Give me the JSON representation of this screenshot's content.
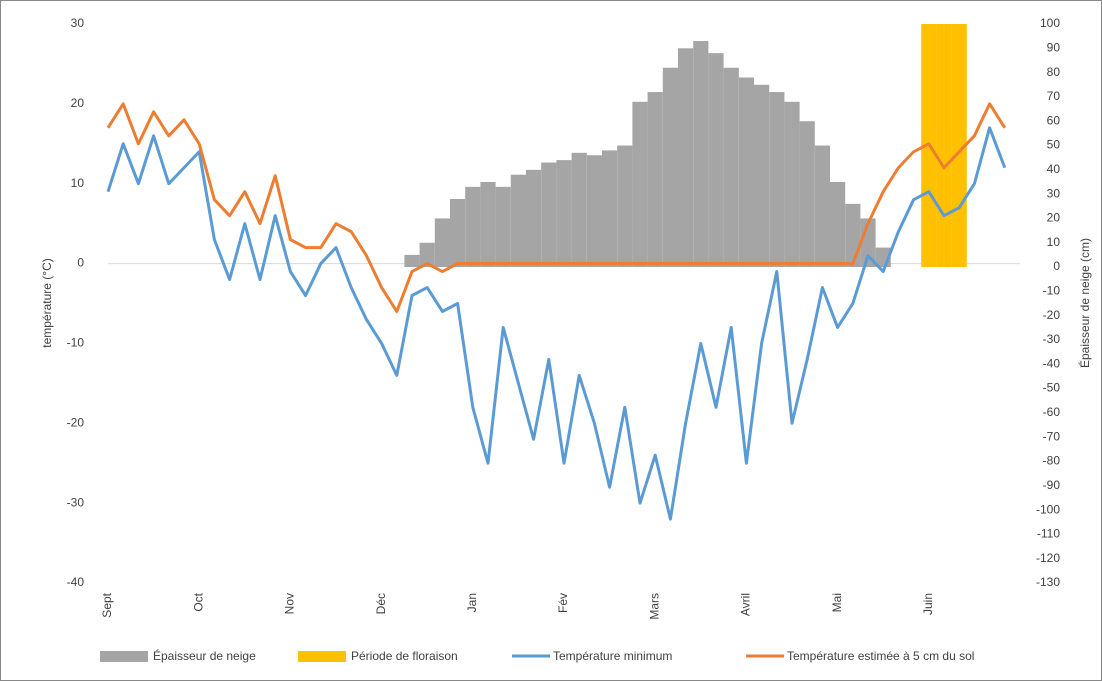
{
  "chart_data": {
    "type": "combo",
    "categories": [
      "Sept",
      null,
      null,
      null,
      null,
      null,
      "Oct",
      null,
      null,
      null,
      null,
      null,
      "Nov",
      null,
      null,
      null,
      null,
      null,
      "Déc",
      null,
      null,
      null,
      null,
      null,
      "Jan",
      null,
      null,
      null,
      null,
      null,
      "Fév",
      null,
      null,
      null,
      null,
      null,
      "Mars",
      null,
      null,
      null,
      null,
      null,
      "Avril",
      null,
      null,
      null,
      null,
      null,
      "Mai",
      null,
      null,
      null,
      null,
      null,
      "Juin",
      null,
      null,
      null,
      null,
      null
    ],
    "ylabel": "température (°C)",
    "y2label": "Épaisseur de neige (cm)",
    "ylim": [
      -40,
      30
    ],
    "yticks": [
      -40,
      -30,
      -20,
      -10,
      0,
      10,
      20,
      30
    ],
    "y2lim": [
      -130,
      100
    ],
    "y2ticks": [
      -130,
      -120,
      -110,
      -100,
      -90,
      -80,
      -70,
      -60,
      -50,
      -40,
      -30,
      -20,
      -10,
      0,
      10,
      20,
      30,
      40,
      50,
      60,
      70,
      80,
      90,
      100
    ],
    "series": [
      {
        "name": "Épaisseur de neige",
        "type": "bar",
        "axis": "y2",
        "color": "#a5a5a5",
        "values": [
          0,
          0,
          0,
          0,
          0,
          0,
          0,
          0,
          0,
          0,
          0,
          0,
          0,
          0,
          0,
          0,
          0,
          0,
          0,
          0,
          5,
          10,
          20,
          28,
          33,
          35,
          33,
          38,
          40,
          43,
          44,
          47,
          46,
          48,
          50,
          68,
          72,
          82,
          90,
          93,
          88,
          82,
          78,
          75,
          72,
          68,
          60,
          50,
          35,
          26,
          20,
          8,
          0,
          0,
          0,
          0,
          0,
          0,
          0,
          0
        ]
      },
      {
        "name": "Période de floraison",
        "type": "bar",
        "axis": "y2",
        "color": "#ffc000",
        "values": [
          null,
          null,
          null,
          null,
          null,
          null,
          null,
          null,
          null,
          null,
          null,
          null,
          null,
          null,
          null,
          null,
          null,
          null,
          null,
          null,
          null,
          null,
          null,
          null,
          null,
          null,
          null,
          null,
          null,
          null,
          null,
          null,
          null,
          null,
          null,
          null,
          null,
          null,
          null,
          null,
          null,
          null,
          null,
          null,
          null,
          null,
          null,
          null,
          null,
          null,
          null,
          null,
          null,
          null,
          100,
          100,
          100,
          null,
          null,
          null
        ]
      },
      {
        "name": "Température minimum",
        "type": "line",
        "color": "#5b9bd5",
        "values": [
          9,
          15,
          10,
          16,
          10,
          12,
          14,
          3,
          -2,
          5,
          -2,
          6,
          -1,
          -4,
          0,
          2,
          -3,
          -7,
          -10,
          -14,
          -4,
          -3,
          -6,
          -5,
          -18,
          -25,
          -8,
          -15,
          -22,
          -12,
          -25,
          -14,
          -20,
          -28,
          -18,
          -30,
          -24,
          -32,
          -20,
          -10,
          -18,
          -8,
          -25,
          -10,
          -1,
          -20,
          -12,
          -3,
          -8,
          -5,
          1,
          -1,
          4,
          8,
          9,
          6,
          7,
          10,
          17,
          12
        ]
      },
      {
        "name": "Température estimée à 5 cm du sol",
        "type": "line",
        "color": "#ed7d31",
        "values": [
          17,
          20,
          15,
          19,
          16,
          18,
          15,
          8,
          6,
          9,
          5,
          11,
          3,
          2,
          2,
          5,
          4,
          1,
          -3,
          -6,
          -1,
          0,
          -1,
          0,
          0,
          0,
          0,
          0,
          0,
          0,
          0,
          0,
          0,
          0,
          0,
          0,
          0,
          0,
          0,
          0,
          0,
          0,
          0,
          0,
          0,
          0,
          0,
          0,
          0,
          0,
          5,
          9,
          12,
          14,
          15,
          12,
          14,
          16,
          20,
          17
        ]
      }
    ]
  }
}
